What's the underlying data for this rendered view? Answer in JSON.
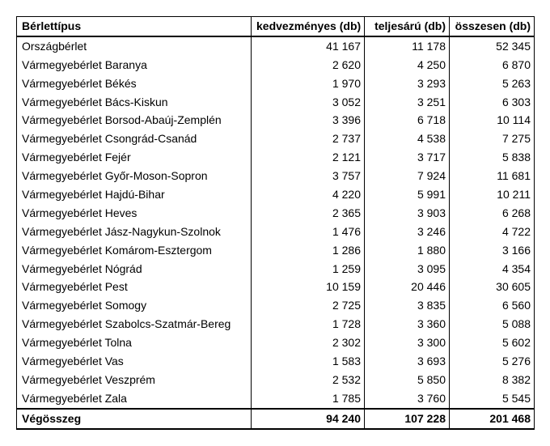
{
  "table": {
    "headers": {
      "type": "Bérlettípus",
      "discount": "kedvezményes (db)",
      "full": "teljesárú (db)",
      "total": "összesen (db)"
    },
    "rows": [
      {
        "label": "Országbérlet",
        "discount": "41 167",
        "full": "11 178",
        "total": "52 345"
      },
      {
        "label": "Vármegyebérlet  Baranya",
        "discount": "2 620",
        "full": "4 250",
        "total": "6 870"
      },
      {
        "label": "Vármegyebérlet  Békés",
        "discount": "1 970",
        "full": "3 293",
        "total": "5 263"
      },
      {
        "label": "Vármegyebérlet Bács-Kiskun",
        "discount": "3 052",
        "full": "3 251",
        "total": "6 303"
      },
      {
        "label": "Vármegyebérlet Borsod-Abaúj-Zemplén",
        "discount": "3 396",
        "full": "6 718",
        "total": "10 114"
      },
      {
        "label": "Vármegyebérlet Csongrád-Csanád",
        "discount": "2 737",
        "full": "4 538",
        "total": "7 275"
      },
      {
        "label": "Vármegyebérlet Fejér",
        "discount": "2 121",
        "full": "3 717",
        "total": "5 838"
      },
      {
        "label": "Vármegyebérlet Győr-Moson-Sopron",
        "discount": "3 757",
        "full": "7 924",
        "total": "11 681"
      },
      {
        "label": "Vármegyebérlet Hajdú-Bihar",
        "discount": "4 220",
        "full": "5 991",
        "total": "10 211"
      },
      {
        "label": "Vármegyebérlet Heves",
        "discount": "2 365",
        "full": "3 903",
        "total": "6 268"
      },
      {
        "label": "Vármegyebérlet Jász-Nagykun-Szolnok",
        "discount": "1 476",
        "full": "3 246",
        "total": "4 722"
      },
      {
        "label": "Vármegyebérlet Komárom-Esztergom",
        "discount": "1 286",
        "full": "1 880",
        "total": "3 166"
      },
      {
        "label": "Vármegyebérlet Nógrád",
        "discount": "1 259",
        "full": "3 095",
        "total": "4 354"
      },
      {
        "label": "Vármegyebérlet Pest",
        "discount": "10 159",
        "full": "20 446",
        "total": "30 605"
      },
      {
        "label": "Vármegyebérlet Somogy",
        "discount": "2 725",
        "full": "3 835",
        "total": "6 560"
      },
      {
        "label": "Vármegyebérlet Szabolcs-Szatmár-Bereg",
        "discount": "1 728",
        "full": "3 360",
        "total": "5 088"
      },
      {
        "label": "Vármegyebérlet Tolna",
        "discount": "2 302",
        "full": "3 300",
        "total": "5 602"
      },
      {
        "label": "Vármegyebérlet Vas",
        "discount": "1 583",
        "full": "3 693",
        "total": "5 276"
      },
      {
        "label": "Vármegyebérlet Veszprém",
        "discount": "2 532",
        "full": "5 850",
        "total": "8 382"
      },
      {
        "label": "Vármegyebérlet Zala",
        "discount": "1 785",
        "full": "3 760",
        "total": "5 545"
      }
    ],
    "footer": {
      "label": "Végösszeg",
      "discount": "94 240",
      "full": "107 228",
      "total": "201 468"
    }
  }
}
